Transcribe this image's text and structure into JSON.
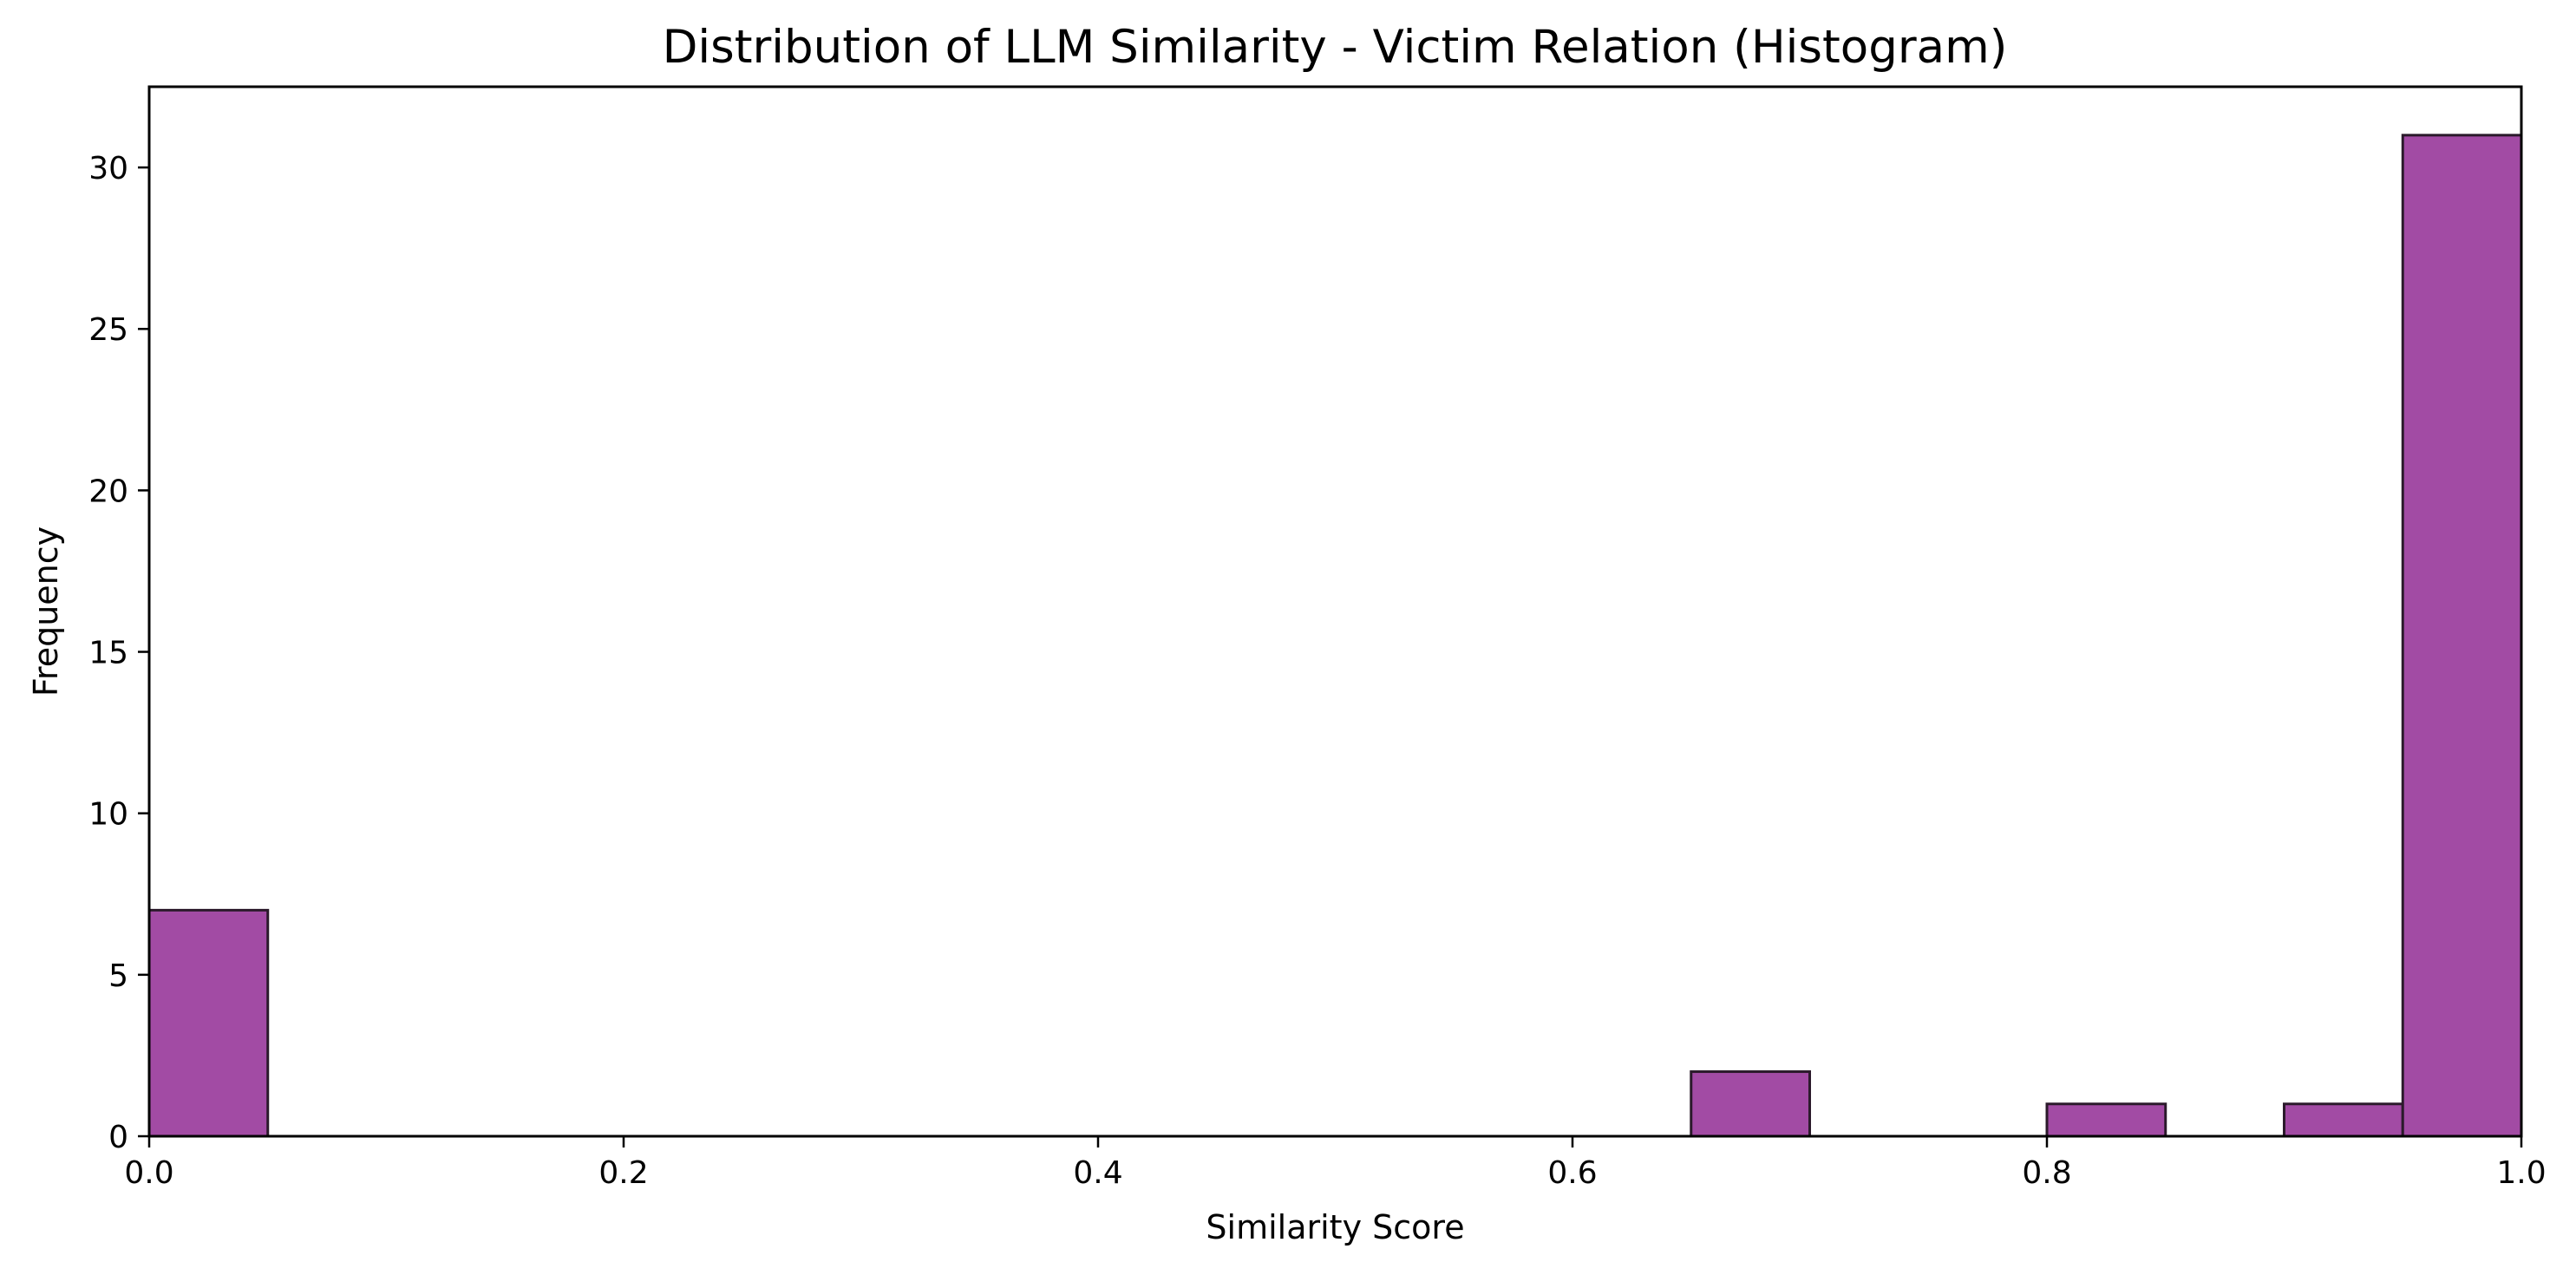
{
  "chart_data": {
    "type": "bar",
    "title": "Distribution of LLM Similarity - Victim Relation (Histogram)",
    "xlabel": "Similarity Score",
    "ylabel": "Frequency",
    "xlim": [
      0,
      1
    ],
    "ylim": [
      0,
      32.5
    ],
    "bar_color": "#a24ba4",
    "edge_color": "#2b1a2b",
    "bins": [
      {
        "start": 0.0,
        "end": 0.05,
        "value": 7
      },
      {
        "start": 0.65,
        "end": 0.7,
        "value": 2
      },
      {
        "start": 0.8,
        "end": 0.85,
        "value": 1
      },
      {
        "start": 0.9,
        "end": 0.95,
        "value": 1
      },
      {
        "start": 0.95,
        "end": 1.0,
        "value": 31
      }
    ],
    "x_ticks": [
      {
        "value": 0.0,
        "label": "0.0"
      },
      {
        "value": 0.2,
        "label": "0.2"
      },
      {
        "value": 0.4,
        "label": "0.4"
      },
      {
        "value": 0.6,
        "label": "0.6"
      },
      {
        "value": 0.8,
        "label": "0.8"
      },
      {
        "value": 1.0,
        "label": "1.0"
      }
    ],
    "y_ticks": [
      {
        "value": 0,
        "label": "0"
      },
      {
        "value": 5,
        "label": "5"
      },
      {
        "value": 10,
        "label": "10"
      },
      {
        "value": 15,
        "label": "15"
      },
      {
        "value": 20,
        "label": "20"
      },
      {
        "value": 25,
        "label": "25"
      },
      {
        "value": 30,
        "label": "30"
      }
    ],
    "grid": false,
    "legend": "none"
  }
}
